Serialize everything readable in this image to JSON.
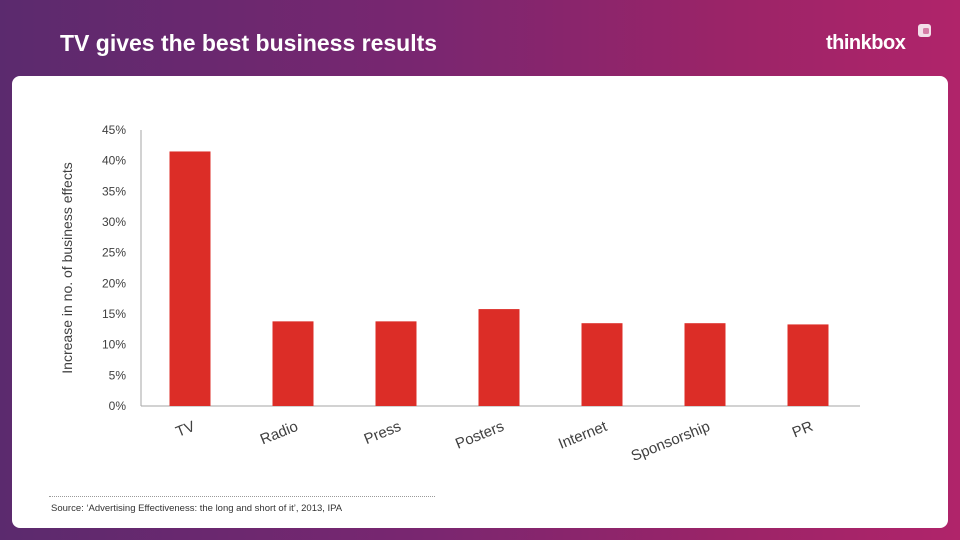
{
  "title": "TV gives the best business results",
  "logo": {
    "text": "thinkbox",
    "icon": "thinkbox-logo-icon"
  },
  "colors": {
    "bar": "#dc2d27",
    "background_start": "#5b2a6e",
    "background_end": "#b0246a"
  },
  "source": "Source: ‘Advertising Effectiveness: the long and short of it’, 2013, IPA",
  "chart_data": {
    "type": "bar",
    "title": "",
    "xlabel": "",
    "ylabel": "Increase in no. of business effects",
    "categories": [
      "TV",
      "Radio",
      "Press",
      "Posters",
      "Internet",
      "Sponsorship",
      "PR"
    ],
    "values": [
      41.5,
      13.8,
      13.8,
      15.8,
      13.5,
      13.5,
      13.3
    ],
    "ylim": [
      0,
      45
    ],
    "yticks": [
      "0%",
      "5%",
      "10%",
      "15%",
      "20%",
      "25%",
      "30%",
      "35%",
      "40%",
      "45%"
    ],
    "grid": false,
    "legend": "none"
  }
}
